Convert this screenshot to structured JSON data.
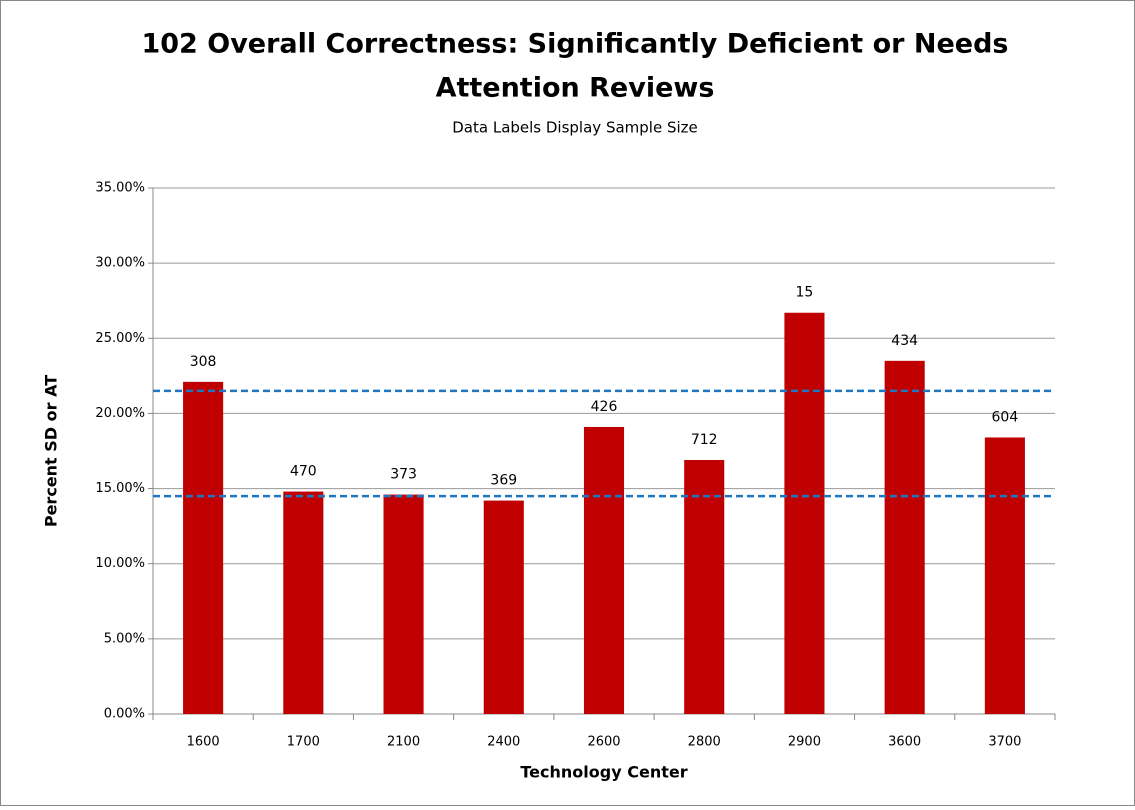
{
  "chart_data": {
    "type": "bar",
    "title": [
      "102 Overall Correctness: Significantly Deficient or Needs",
      "Attention Reviews"
    ],
    "subtitle": "Data Labels Display Sample Size",
    "x_label": "Technology Center",
    "y_label": "Percent SD or AT",
    "categories": [
      "1600",
      "1700",
      "2100",
      "2400",
      "2600",
      "2800",
      "2900",
      "3600",
      "3700"
    ],
    "values": [
      22.1,
      14.8,
      14.6,
      14.2,
      19.1,
      16.9,
      26.7,
      23.5,
      18.4
    ],
    "sample_sizes": [
      "308",
      "470",
      "373",
      "369",
      "426",
      "712",
      "15",
      "434",
      "604"
    ],
    "color": "#c00000",
    "reference_lines": [
      21.5,
      14.5
    ],
    "reference_color": "#1f77c4",
    "ylim": [
      0,
      35
    ],
    "yticks": [
      {
        "value": 0,
        "label": "0.00%"
      },
      {
        "value": 5,
        "label": "5.00%"
      },
      {
        "value": 10,
        "label": "10.00%"
      },
      {
        "value": 15,
        "label": "15.00%"
      },
      {
        "value": 20,
        "label": "20.00%"
      },
      {
        "value": 25,
        "label": "25.00%"
      },
      {
        "value": 30,
        "label": "30.00%"
      },
      {
        "value": 35,
        "label": "35.00%"
      }
    ],
    "grid": true
  }
}
